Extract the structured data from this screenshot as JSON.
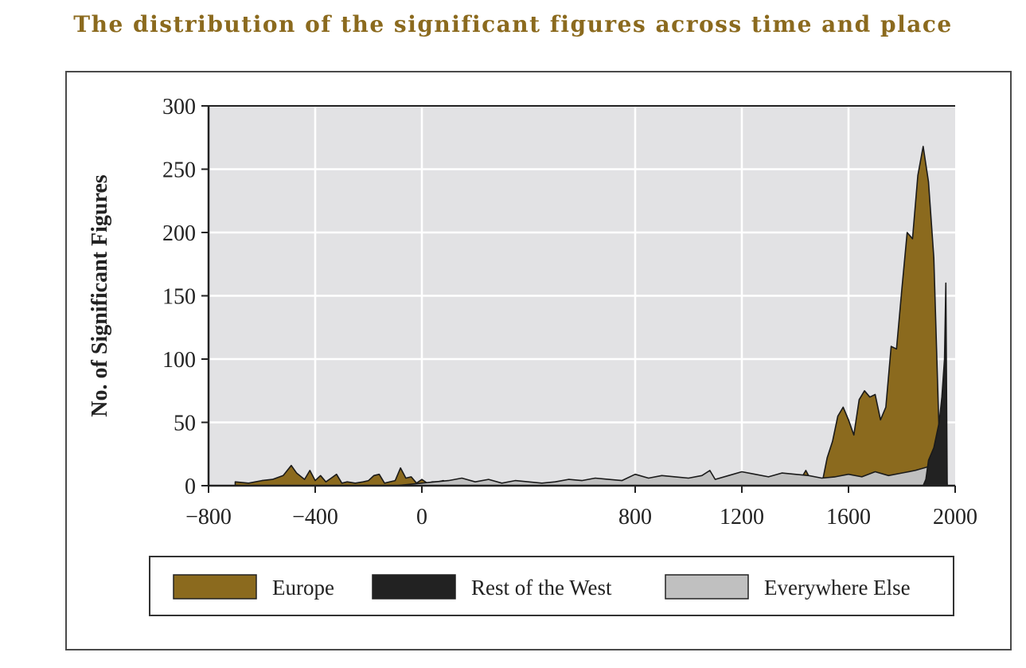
{
  "title": "The distribution of the significant figures across time and place",
  "colors": {
    "europe": "#8b6a1e",
    "rest_of_west": "#222222",
    "everywhere_else": "#c0c0c0",
    "plot_bg": "#e2e2e4",
    "grid": "#ffffff",
    "title": "#8b6a1e"
  },
  "chart_data": {
    "type": "area",
    "stacked": false,
    "title": "The distribution of the significant figures across time and place",
    "xlabel": "",
    "ylabel": "No. of Significant Figures",
    "xlim": [
      -800,
      2000
    ],
    "ylim": [
      0,
      300
    ],
    "xticks": [
      "-800",
      "-400",
      "0",
      "800",
      "1200",
      "1600",
      "2000"
    ],
    "xtick_values": [
      -800,
      -400,
      0,
      800,
      1200,
      1600,
      2000
    ],
    "yticks": [
      "0",
      "50",
      "100",
      "150",
      "200",
      "250",
      "300"
    ],
    "ytick_values": [
      0,
      50,
      100,
      150,
      200,
      250,
      300
    ],
    "grid": true,
    "legend_position": "bottom",
    "series": [
      {
        "name": "Europe",
        "color": "#8b6a1e",
        "x": [
          -700,
          -650,
          -600,
          -560,
          -520,
          -490,
          -470,
          -440,
          -420,
          -400,
          -380,
          -360,
          -340,
          -320,
          -300,
          -280,
          -250,
          -220,
          -200,
          -180,
          -160,
          -140,
          -120,
          -100,
          -80,
          -60,
          -40,
          -20,
          0,
          20,
          40,
          60,
          80,
          100,
          120,
          140,
          160,
          200,
          300,
          400,
          500,
          600,
          700,
          800,
          900,
          1000,
          1100,
          1200,
          1300,
          1350,
          1400,
          1420,
          1440,
          1460,
          1480,
          1500,
          1520,
          1540,
          1560,
          1580,
          1600,
          1620,
          1640,
          1660,
          1680,
          1700,
          1720,
          1740,
          1760,
          1780,
          1800,
          1820,
          1840,
          1860,
          1880,
          1900,
          1920,
          1940,
          1950,
          1960,
          1970
        ],
        "values": [
          3,
          2,
          4,
          5,
          8,
          16,
          10,
          5,
          12,
          4,
          8,
          3,
          6,
          9,
          2,
          3,
          2,
          3,
          4,
          8,
          9,
          2,
          3,
          4,
          14,
          6,
          7,
          2,
          5,
          2,
          3,
          3,
          4,
          2,
          1,
          1,
          0,
          0,
          0,
          0,
          0,
          0,
          0,
          0,
          0,
          0,
          0,
          0,
          0,
          3,
          8,
          5,
          12,
          4,
          6,
          1,
          22,
          35,
          55,
          62,
          52,
          40,
          68,
          75,
          70,
          72,
          52,
          62,
          110,
          108,
          155,
          200,
          195,
          245,
          268,
          240,
          180,
          40,
          0,
          0,
          0
        ]
      },
      {
        "name": "Rest of the West",
        "color": "#222222",
        "x": [
          1880,
          1890,
          1900,
          1920,
          1940,
          1950,
          1960,
          1965,
          1970
        ],
        "values": [
          0,
          5,
          20,
          30,
          50,
          70,
          100,
          160,
          0
        ]
      },
      {
        "name": "Everywhere Else",
        "color": "#c0c0c0",
        "x": [
          -700,
          -600,
          -500,
          -400,
          -300,
          -200,
          -100,
          0,
          50,
          100,
          150,
          200,
          250,
          300,
          350,
          400,
          450,
          500,
          550,
          600,
          650,
          700,
          750,
          800,
          850,
          900,
          950,
          1000,
          1050,
          1080,
          1100,
          1150,
          1200,
          1250,
          1300,
          1350,
          1400,
          1450,
          1500,
          1550,
          1600,
          1650,
          1700,
          1750,
          1800,
          1850,
          1900,
          1920,
          1940,
          1950,
          1960,
          1970
        ],
        "values": [
          0,
          0,
          0,
          0,
          0,
          0,
          0,
          2,
          3,
          4,
          6,
          3,
          5,
          2,
          4,
          3,
          2,
          3,
          5,
          4,
          6,
          5,
          4,
          9,
          6,
          8,
          7,
          6,
          8,
          12,
          5,
          8,
          11,
          9,
          7,
          10,
          9,
          8,
          6,
          7,
          9,
          7,
          11,
          8,
          10,
          12,
          15,
          18,
          25,
          35,
          40,
          0
        ]
      }
    ]
  },
  "legend": {
    "items": [
      {
        "label": "Europe",
        "color": "#8b6a1e"
      },
      {
        "label": "Rest of the West",
        "color": "#222222"
      },
      {
        "label": "Everywhere Else",
        "color": "#c0c0c0"
      }
    ]
  }
}
